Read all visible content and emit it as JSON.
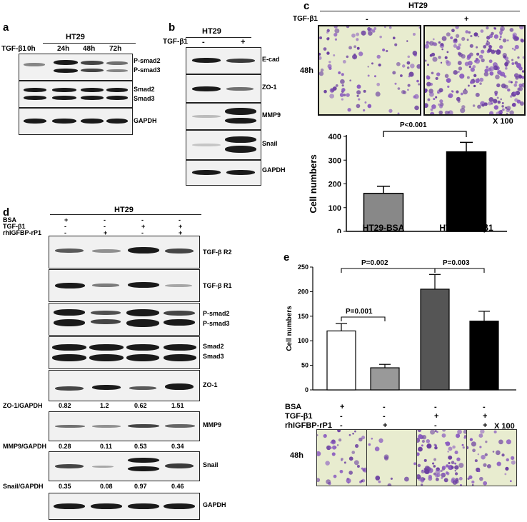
{
  "panel_a": {
    "letter": "a",
    "cell_line": "HT29",
    "treatment": "TGF-β1",
    "timepoints": [
      "0h",
      "24h",
      "48h",
      "72h"
    ],
    "blots": [
      {
        "labels": [
          "P-smad2",
          "P-smad3"
        ]
      },
      {
        "labels": [
          "Smad2",
          "Smad3"
        ]
      },
      {
        "labels": [
          "GAPDH"
        ]
      }
    ]
  },
  "panel_b": {
    "letter": "b",
    "cell_line": "HT29",
    "treatment": "TGF-β1",
    "conditions": [
      "-",
      "+"
    ],
    "blots": [
      "E-cad",
      "ZO-1",
      "MMP9",
      "Snail",
      "GAPDH"
    ]
  },
  "panel_c": {
    "letter": "c",
    "cell_line": "HT29",
    "treatment": "TGF-β1",
    "conditions": [
      "-",
      "+"
    ],
    "time": "48h",
    "magnification": "X 100",
    "significance": "P<0.001"
  },
  "panel_d": {
    "letter": "d",
    "cell_line": "HT29",
    "row_labels": [
      "BSA",
      "TGF-β1",
      "rhIGFBP-rP1"
    ],
    "rows": [
      [
        "+",
        "-",
        "-",
        "-"
      ],
      [
        "-",
        "-",
        "+",
        "+"
      ],
      [
        "-",
        "+",
        "-",
        "+"
      ]
    ],
    "blots": [
      {
        "labels": [
          "TGF-β R2"
        ]
      },
      {
        "labels": [
          "TGF-β R1"
        ]
      },
      {
        "labels": [
          "P-smad2",
          "P-smad3"
        ]
      },
      {
        "labels": [
          "Smad2",
          "Smad3"
        ]
      },
      {
        "labels": [
          "ZO-1"
        ]
      },
      {
        "labels": [
          "MMP9"
        ]
      },
      {
        "labels": [
          "Snail"
        ]
      },
      {
        "labels": [
          "GAPDH"
        ]
      }
    ],
    "quant": [
      {
        "label": "ZO-1/GAPDH",
        "values": [
          "0.82",
          "1.2",
          "0.62",
          "1.51"
        ]
      },
      {
        "label": "MMP9/GAPDH",
        "values": [
          "0.28",
          "0.11",
          "0.53",
          "0.34"
        ]
      },
      {
        "label": "Snail/GAPDH",
        "values": [
          "0.35",
          "0.08",
          "0.97",
          "0.46"
        ]
      }
    ]
  },
  "panel_e": {
    "letter": "e",
    "row_labels": [
      "BSA",
      "TGF-β1",
      "rhIGFBP-rP1"
    ],
    "rows": [
      [
        "+",
        "-",
        "-",
        "-"
      ],
      [
        "-",
        "-",
        "+",
        "+"
      ],
      [
        "-",
        "+",
        "-",
        "+"
      ]
    ],
    "magnification": "X 100",
    "time": "48h",
    "significance": [
      {
        "label": "P=0.002"
      },
      {
        "label": "P=0.003"
      },
      {
        "label": "P=0.001"
      }
    ]
  },
  "chart_data": [
    {
      "type": "bar",
      "panel": "c",
      "categories": [
        "HT29-BSA",
        "HT29-TGF-β1"
      ],
      "values": [
        160,
        335
      ],
      "errors": [
        30,
        40
      ],
      "colors": [
        "#888888",
        "#000000"
      ],
      "ylabel": "Cell numbers",
      "ylim": [
        0,
        400
      ],
      "yticks": [
        0,
        100,
        200,
        300,
        400
      ]
    },
    {
      "type": "bar",
      "panel": "e",
      "categories": [
        "BSA",
        "rhIGFBP-rP1",
        "TGF-β1",
        "TGF-β1 + rhIGFBP-rP1"
      ],
      "values": [
        120,
        45,
        205,
        140
      ],
      "errors": [
        15,
        7,
        30,
        20
      ],
      "colors": [
        "#ffffff",
        "#999999",
        "#555555",
        "#000000"
      ],
      "ylabel": "Cell numbers",
      "ylim": [
        0,
        250
      ],
      "yticks": [
        0,
        50,
        100,
        150,
        200,
        250
      ]
    }
  ]
}
